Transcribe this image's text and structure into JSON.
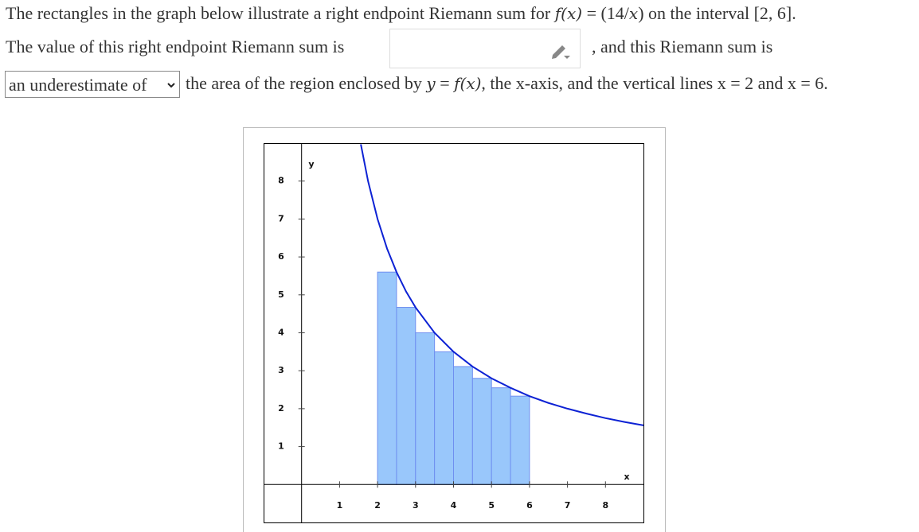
{
  "question": {
    "line1": [
      "The rectangles in the graph below illustrate a right endpoint Riemann sum for ",
      "f(x)",
      " = (14/",
      "x",
      ") on the interval [2, 6]."
    ],
    "line2_before": "The value of this right endpoint Riemann sum is",
    "line2_after": ", and this Riemann sum is",
    "select": "an underestimate of",
    "line3": [
      "the area of the region enclosed by ",
      "y",
      " = ",
      "f(x)",
      ", the x-axis, and the vertical lines x = 2 and x = 6."
    ]
  },
  "chart_data": {
    "type": "histogram",
    "xlabel": "x",
    "ylabel": "y",
    "xlim": [
      -1,
      9
    ],
    "ylim": [
      -1,
      9
    ],
    "xticks": [
      1,
      2,
      3,
      4,
      5,
      6,
      7,
      8
    ],
    "yticks": [
      1,
      2,
      3,
      4,
      5,
      6,
      7,
      8
    ],
    "bins": [
      2,
      2.5,
      3,
      3.5,
      4,
      4.5,
      5,
      5.5,
      6
    ],
    "values": [
      5.6,
      4.67,
      4,
      3.5,
      3.11,
      2.8,
      2.55,
      2.33
    ],
    "color": "#99c7fb",
    "edge_color": "#6f8ff0",
    "curve": {
      "color": "#0d22d4",
      "x": [
        1.56,
        1.75,
        2,
        2.25,
        2.5,
        2.75,
        3,
        3.5,
        4,
        4.5,
        5,
        5.5,
        6,
        6.5,
        7,
        7.5,
        8,
        8.5,
        9
      ],
      "values": [
        8.97,
        8,
        7,
        6.22,
        5.6,
        5.09,
        4.67,
        4,
        3.5,
        3.11,
        2.8,
        2.55,
        2.33,
        2.15,
        2,
        1.87,
        1.75,
        1.65,
        1.56
      ]
    }
  }
}
